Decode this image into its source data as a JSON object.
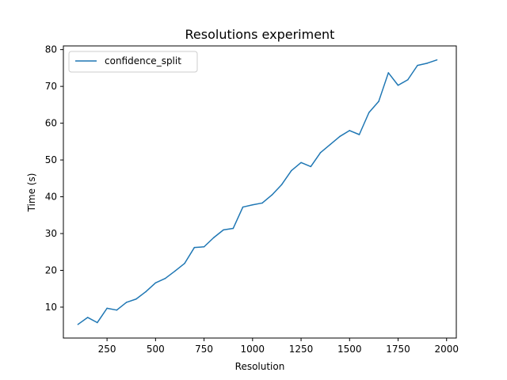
{
  "chart_data": {
    "type": "line",
    "title": "Resolutions experiment",
    "xlabel": "Resolution",
    "ylabel": "Time (s)",
    "xlim": [
      25,
      2050
    ],
    "ylim": [
      1.6,
      81.0
    ],
    "xticks": [
      250,
      500,
      750,
      1000,
      1250,
      1500,
      1750,
      2000
    ],
    "yticks": [
      10,
      20,
      30,
      40,
      50,
      60,
      70,
      80
    ],
    "grid": false,
    "legend_position": "top-left",
    "series": [
      {
        "name": "confidence_split",
        "color": "#1f77b4",
        "x": [
          100,
          150,
          200,
          250,
          300,
          350,
          400,
          450,
          500,
          550,
          600,
          650,
          700,
          750,
          800,
          850,
          900,
          950,
          1000,
          1050,
          1100,
          1150,
          1200,
          1250,
          1300,
          1350,
          1400,
          1450,
          1500,
          1550,
          1600,
          1650,
          1700,
          1750,
          1800,
          1850,
          1900,
          1950
        ],
        "y": [
          5.3,
          7.2,
          5.8,
          9.7,
          9.2,
          11.3,
          12.2,
          14.2,
          16.6,
          17.8,
          19.8,
          21.9,
          26.2,
          26.4,
          28.9,
          31.0,
          31.4,
          37.2,
          37.8,
          38.3,
          40.5,
          43.3,
          47.1,
          49.3,
          48.2,
          52.0,
          54.2,
          56.4,
          58.0,
          56.9,
          62.9,
          65.9,
          73.7,
          70.3,
          71.8,
          75.7,
          76.3,
          77.2
        ]
      }
    ]
  }
}
